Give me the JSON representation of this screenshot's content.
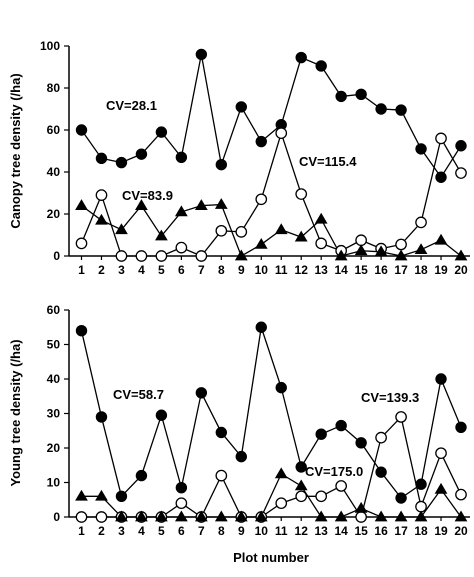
{
  "chart_data": [
    {
      "type": "line",
      "ylabel": "Canopy tree density (/ha)",
      "xlabel": "",
      "ylim": [
        0,
        100
      ],
      "yticks": [
        0,
        20,
        40,
        60,
        80,
        100
      ],
      "categories": [
        "1",
        "2",
        "3",
        "4",
        "5",
        "6",
        "7",
        "8",
        "9",
        "10",
        "11",
        "12",
        "13",
        "14",
        "15",
        "16",
        "17",
        "18",
        "19",
        "20"
      ],
      "series": [
        {
          "marker": "filled-circle",
          "values": [
            60,
            46.5,
            44.5,
            48.5,
            59,
            47,
            96,
            43.5,
            71,
            54.5,
            62.5,
            94.5,
            90.5,
            76,
            77,
            70,
            69.5,
            51,
            37.5,
            52.5
          ]
        },
        {
          "marker": "open-circle",
          "values": [
            6,
            29,
            0,
            0,
            0,
            4,
            0,
            12,
            11.5,
            27,
            58.5,
            29.5,
            6,
            2.5,
            7.5,
            3.5,
            5.5,
            16,
            56,
            39.5
          ]
        },
        {
          "marker": "filled-triangle",
          "values": [
            24,
            17,
            12.5,
            24,
            9.5,
            21,
            24,
            24.5,
            0,
            5.5,
            12.5,
            9,
            17.5,
            0,
            2.5,
            2,
            0,
            3,
            7.5,
            0
          ]
        }
      ],
      "annotations": [
        "CV=28.1",
        "CV=115.4",
        "CV=83.9"
      ],
      "grid": false,
      "legend": "none"
    },
    {
      "type": "line",
      "ylabel": "Young tree density (/ha)",
      "xlabel": "Plot number",
      "ylim": [
        0,
        60
      ],
      "yticks": [
        0,
        10,
        20,
        30,
        40,
        50,
        60
      ],
      "categories": [
        "1",
        "2",
        "3",
        "4",
        "5",
        "6",
        "7",
        "8",
        "9",
        "10",
        "11",
        "12",
        "13",
        "14",
        "15",
        "16",
        "17",
        "18",
        "19",
        "20"
      ],
      "series": [
        {
          "marker": "filled-circle",
          "values": [
            54,
            29,
            6,
            12,
            29.5,
            8.5,
            36,
            24.5,
            17.5,
            55,
            37.5,
            14.5,
            24,
            26.5,
            21.5,
            13,
            5.5,
            9.5,
            40,
            26
          ]
        },
        {
          "marker": "open-circle",
          "values": [
            0,
            0,
            0,
            0,
            0,
            4,
            0,
            12,
            0,
            0,
            4,
            6,
            6,
            9,
            0,
            23,
            29,
            3,
            18.5,
            6.5
          ]
        },
        {
          "marker": "filled-triangle",
          "values": [
            6,
            6,
            0,
            0,
            0,
            0,
            0,
            0,
            0,
            0,
            12.5,
            9,
            0,
            0,
            2.5,
            0,
            0,
            0,
            8,
            0
          ]
        }
      ],
      "annotations": [
        "CV=58.7",
        "CV=139.3",
        "CV=175.0"
      ],
      "grid": false,
      "legend": "none"
    }
  ]
}
